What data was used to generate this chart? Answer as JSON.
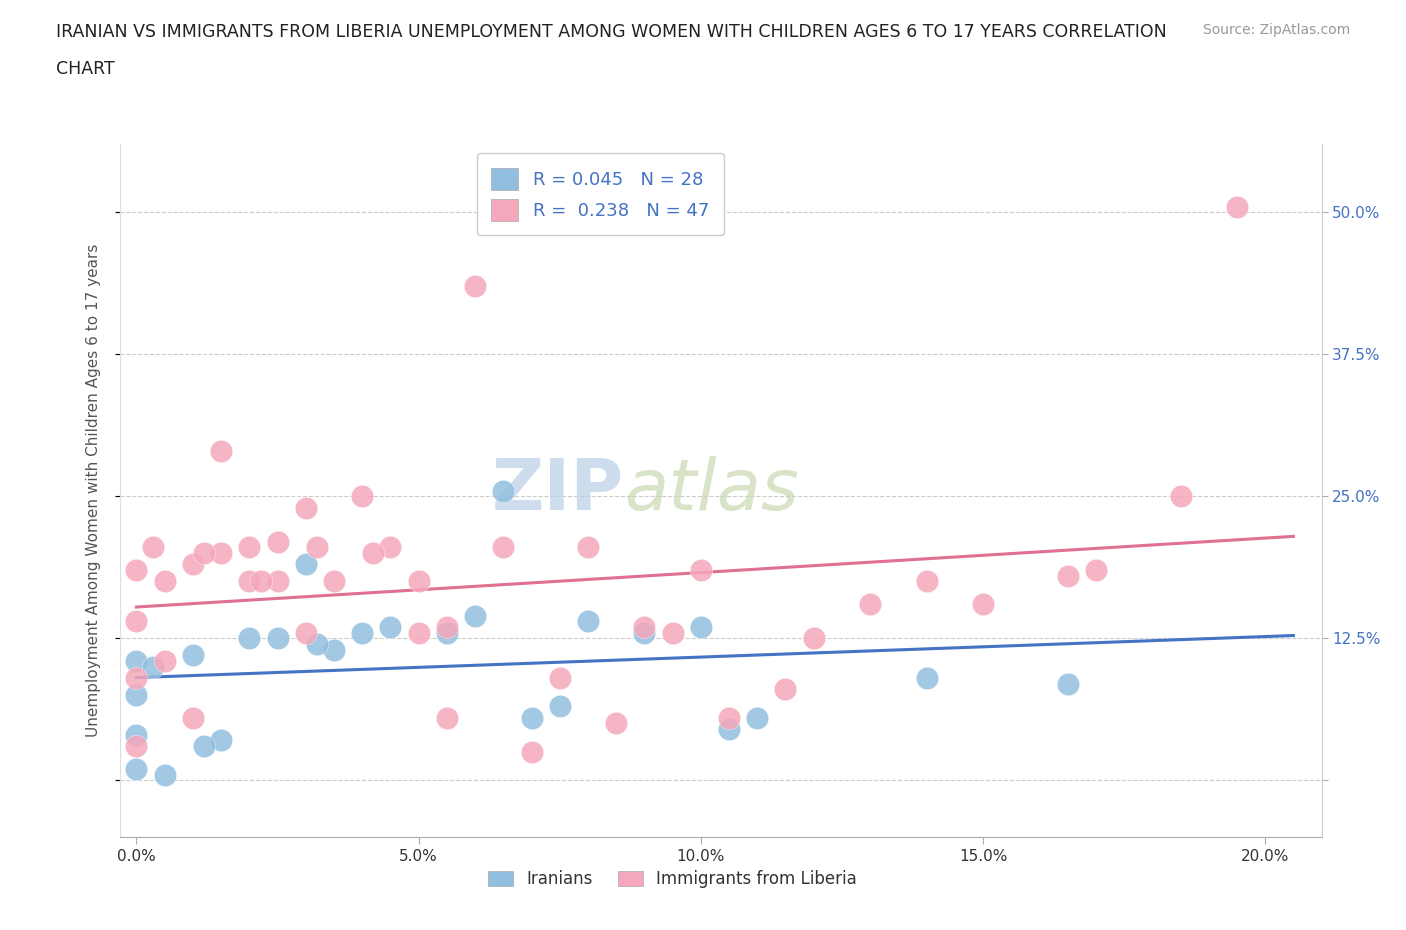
{
  "title_line1": "IRANIAN VS IMMIGRANTS FROM LIBERIA UNEMPLOYMENT AMONG WOMEN WITH CHILDREN AGES 6 TO 17 YEARS CORRELATION",
  "title_line2": "CHART",
  "source": "Source: ZipAtlas.com",
  "ylabel": "Unemployment Among Women with Children Ages 6 to 17 years",
  "xtick_labels": [
    "0.0%",
    "5.0%",
    "10.0%",
    "15.0%",
    "20.0%"
  ],
  "xtick_vals": [
    0.0,
    5.0,
    10.0,
    15.0,
    20.0
  ],
  "ytick_labels": [
    "",
    "12.5%",
    "25.0%",
    "37.5%",
    "50.0%"
  ],
  "ytick_vals": [
    0.0,
    12.5,
    25.0,
    37.5,
    50.0
  ],
  "xlim": [
    -0.3,
    21.0
  ],
  "ylim": [
    -5.0,
    56.0
  ],
  "iranians_color": "#92bfe0",
  "liberia_color": "#f5a8bb",
  "iranians_line_color": "#4472c4",
  "liberia_line_color": "#e07090",
  "iranians_R": 0.045,
  "iranians_N": 28,
  "liberia_R": 0.238,
  "liberia_N": 47,
  "legend_color": "#4472c4",
  "legend_label_iranians": "Iranians",
  "legend_label_liberia": "Immigrants from Liberia",
  "watermark_zip": "ZIP",
  "watermark_atlas": "atlas",
  "iranians_x": [
    0.0,
    0.0,
    0.0,
    0.0,
    0.5,
    1.0,
    1.5,
    2.0,
    2.5,
    3.0,
    3.5,
    4.0,
    5.5,
    6.5,
    7.0,
    7.5,
    8.0,
    9.0,
    10.5,
    11.0,
    14.0,
    16.5,
    0.3,
    1.2,
    3.2,
    4.5,
    6.0,
    10.0
  ],
  "iranians_y": [
    1.0,
    4.0,
    7.5,
    10.5,
    0.5,
    11.0,
    3.5,
    12.5,
    12.5,
    19.0,
    11.5,
    13.0,
    13.0,
    25.5,
    5.5,
    6.5,
    14.0,
    13.0,
    4.5,
    5.5,
    9.0,
    8.5,
    10.0,
    3.0,
    12.0,
    13.5,
    14.5,
    13.5
  ],
  "liberia_x": [
    0.0,
    0.0,
    0.0,
    0.0,
    0.5,
    0.5,
    1.0,
    1.0,
    1.5,
    1.5,
    2.0,
    2.0,
    2.5,
    2.5,
    3.0,
    3.0,
    3.5,
    4.0,
    4.5,
    5.0,
    5.0,
    5.5,
    5.5,
    6.0,
    6.5,
    7.0,
    7.5,
    8.5,
    9.5,
    10.5,
    11.5,
    12.0,
    14.0,
    15.0,
    16.5,
    18.5,
    19.5,
    0.3,
    1.2,
    2.2,
    3.2,
    4.2,
    8.0,
    9.0,
    10.0,
    13.0,
    17.0
  ],
  "liberia_y": [
    3.0,
    9.0,
    14.0,
    18.5,
    10.5,
    17.5,
    5.5,
    19.0,
    20.0,
    29.0,
    17.5,
    20.5,
    17.5,
    21.0,
    13.0,
    24.0,
    17.5,
    25.0,
    20.5,
    17.5,
    13.0,
    5.5,
    13.5,
    43.5,
    20.5,
    2.5,
    9.0,
    5.0,
    13.0,
    5.5,
    8.0,
    12.5,
    17.5,
    15.5,
    18.0,
    25.0,
    50.5,
    20.5,
    20.0,
    17.5,
    20.5,
    20.0,
    20.5,
    13.5,
    18.5,
    15.5,
    18.5
  ]
}
